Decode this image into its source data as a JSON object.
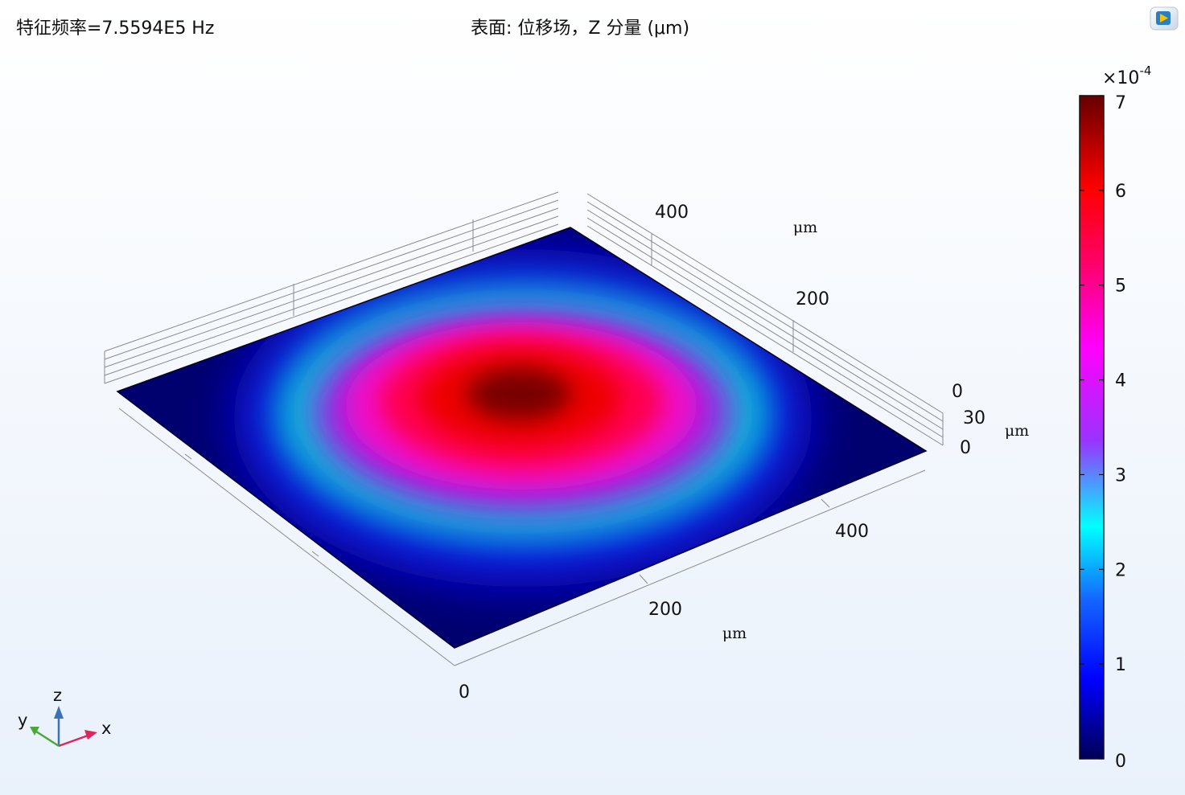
{
  "header": {
    "eigenfrequency": "特征频率=7.5594E5 Hz",
    "title": "表面: 位移场，Z 分量 (μm)"
  },
  "chart_data": {
    "type": "heatmap",
    "title": "表面: 位移场，Z 分量 (μm)",
    "subtitle": "特征频率=7.5594E5 Hz",
    "quantity": "Z displacement",
    "peak_location": "center of plate",
    "x_axis": {
      "ticks": [
        "200",
        "400"
      ],
      "origin_label": "0",
      "unit": "μm",
      "range": [
        0,
        500
      ]
    },
    "y_axis": {
      "ticks": [
        "200",
        "400"
      ],
      "origin_label": "0",
      "unit": "μm",
      "range": [
        0,
        500
      ]
    },
    "z_axis": {
      "ticks": [
        "0",
        "30",
        "0"
      ],
      "unit": "μm"
    },
    "colorbar": {
      "multiplier_base": "×10",
      "multiplier_exp": "-4",
      "range": [
        0,
        7
      ],
      "ticks": [
        "0",
        "1",
        "2",
        "3",
        "4",
        "5",
        "6",
        "7"
      ],
      "colormap": [
        "#000055",
        "#0000ff",
        "#00ffff",
        "#9933ff",
        "#ff00ff",
        "#ff0066",
        "#ff0000",
        "#660000"
      ]
    }
  },
  "triad": {
    "x": "x",
    "y": "y",
    "z": "z"
  },
  "colors": {
    "x_axis": "#e0245e",
    "y_axis": "#4aa83a",
    "z_axis": "#3a72b8"
  },
  "logo_icon": "comsol-play-icon"
}
